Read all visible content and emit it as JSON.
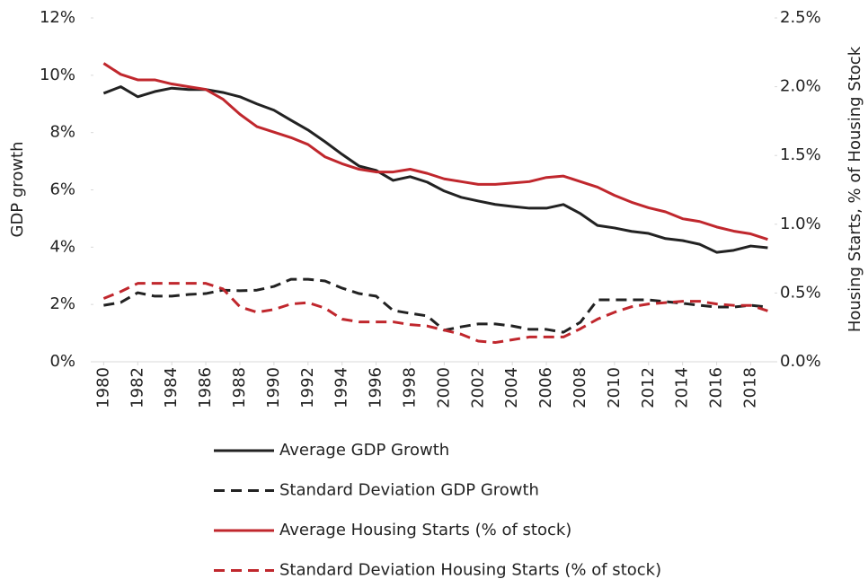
{
  "chart_data": {
    "type": "line",
    "y_label": "GDP growth",
    "y2_label": "Housing Starts, % of Housing Stock",
    "x": [
      1980,
      1981,
      1982,
      1983,
      1984,
      1985,
      1986,
      1987,
      1988,
      1989,
      1990,
      1991,
      1992,
      1993,
      1994,
      1995,
      1996,
      1997,
      1998,
      1999,
      2000,
      2001,
      2002,
      2003,
      2004,
      2005,
      2006,
      2007,
      2008,
      2009,
      2010,
      2011,
      2012,
      2013,
      2014,
      2015,
      2016,
      2017,
      2018,
      2019
    ],
    "xlim": [
      1979.4,
      2019.4
    ],
    "xticks": [
      1980,
      1982,
      1984,
      1986,
      1988,
      1990,
      1992,
      1994,
      1996,
      1998,
      2000,
      2002,
      2004,
      2006,
      2008,
      2010,
      2012,
      2014,
      2016,
      2018
    ],
    "ylim": [
      0,
      12
    ],
    "yticks": [
      {
        "value": 0,
        "label": "0%"
      },
      {
        "value": 2,
        "label": "2%"
      },
      {
        "value": 4,
        "label": "4%"
      },
      {
        "value": 6,
        "label": "6%"
      },
      {
        "value": 8,
        "label": "8%"
      },
      {
        "value": 10,
        "label": "10%"
      },
      {
        "value": 12,
        "label": "12%"
      }
    ],
    "y2lim": [
      0,
      2.5
    ],
    "y2ticks": [
      {
        "value": 0,
        "label": "0.0%"
      },
      {
        "value": 0.5,
        "label": "0.5%"
      },
      {
        "value": 1,
        "label": "1.0%"
      },
      {
        "value": 1.5,
        "label": "1.5%"
      },
      {
        "value": 2,
        "label": "2.0%"
      },
      {
        "value": 2.5,
        "label": "2.5%"
      }
    ],
    "grid": false,
    "series": [
      {
        "name": "Average GDP Growth",
        "color": "#222222",
        "dash": false,
        "values": [
          9.37,
          9.6,
          9.25,
          9.43,
          9.55,
          9.5,
          9.5,
          9.4,
          9.25,
          9.0,
          8.78,
          8.43,
          8.09,
          7.68,
          7.24,
          6.83,
          6.68,
          6.33,
          6.46,
          6.27,
          5.96,
          5.74,
          5.61,
          5.49,
          5.42,
          5.36,
          5.36,
          5.49,
          5.17,
          4.76,
          4.67,
          4.55,
          4.48,
          4.3,
          4.23,
          4.1,
          3.82,
          3.89,
          4.04,
          3.98
        ]
      },
      {
        "name": "Standard Deviation GDP Growth",
        "color": "#222222",
        "dash": true,
        "values": [
          1.97,
          2.07,
          2.41,
          2.29,
          2.29,
          2.35,
          2.38,
          2.5,
          2.48,
          2.5,
          2.63,
          2.88,
          2.88,
          2.82,
          2.57,
          2.38,
          2.29,
          1.79,
          1.69,
          1.6,
          1.1,
          1.22,
          1.32,
          1.32,
          1.25,
          1.13,
          1.13,
          1.03,
          1.38,
          2.16,
          2.16,
          2.16,
          2.16,
          2.1,
          2.04,
          1.97,
          1.91,
          1.91,
          1.97,
          1.91
        ]
      },
      {
        "name": "Average Housing Starts (% of stock)",
        "color": "#c0272d",
        "dash": false,
        "axis": "y2",
        "values": [
          2.17,
          2.09,
          2.05,
          2.05,
          2.02,
          2.0,
          1.98,
          1.91,
          1.8,
          1.71,
          1.67,
          1.63,
          1.58,
          1.49,
          1.44,
          1.4,
          1.38,
          1.38,
          1.4,
          1.37,
          1.33,
          1.31,
          1.29,
          1.29,
          1.3,
          1.31,
          1.34,
          1.35,
          1.31,
          1.27,
          1.21,
          1.16,
          1.12,
          1.09,
          1.04,
          1.02,
          0.98,
          0.95,
          0.93,
          0.89
        ]
      },
      {
        "name": "Standard Deviation Housing Starts (% of stock)",
        "color": "#c0272d",
        "dash": true,
        "axis": "y2",
        "values": [
          0.46,
          0.51,
          0.57,
          0.57,
          0.57,
          0.57,
          0.57,
          0.53,
          0.4,
          0.36,
          0.38,
          0.42,
          0.43,
          0.39,
          0.31,
          0.29,
          0.29,
          0.29,
          0.27,
          0.26,
          0.23,
          0.2,
          0.15,
          0.14,
          0.16,
          0.18,
          0.18,
          0.18,
          0.24,
          0.31,
          0.36,
          0.4,
          0.42,
          0.43,
          0.44,
          0.44,
          0.42,
          0.41,
          0.41,
          0.37
        ]
      }
    ]
  }
}
